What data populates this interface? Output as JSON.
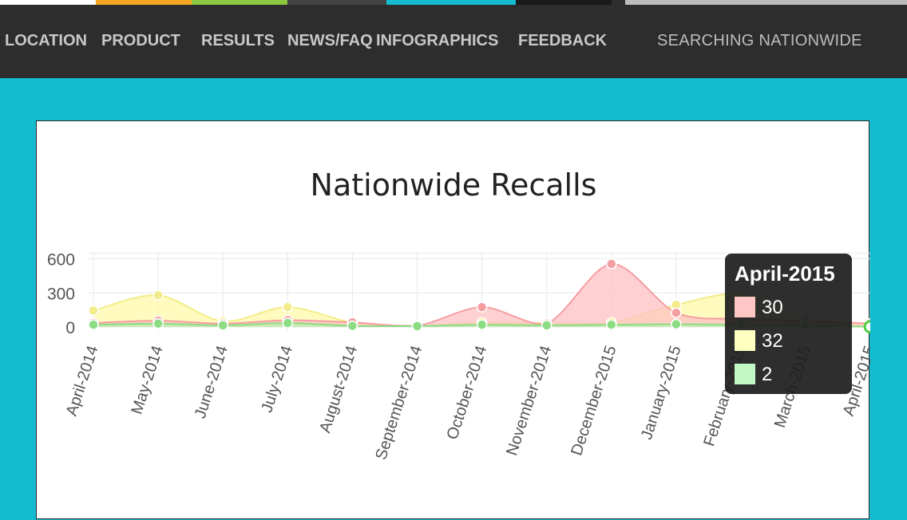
{
  "nav": {
    "strip_colors": [
      "#ffffff",
      "#f5a623",
      "#8dc63f",
      "#444444",
      "#14bccf",
      "#1a1a1a",
      "#2d2d2d",
      "#bbbbbb"
    ],
    "items": [
      "LOCATION",
      "PRODUCT",
      "RESULTS",
      "NEWS/FAQ",
      "INFOGRAPHICS",
      "FEEDBACK"
    ],
    "searching": "SEARCHING NATIONWIDE"
  },
  "tooltip": {
    "title": "April-2015",
    "rows": [
      {
        "value": "30",
        "color": "#ffc6c6"
      },
      {
        "value": "32",
        "color": "#ffffc0"
      },
      {
        "value": "2",
        "color": "#c2f7c6"
      }
    ]
  },
  "chart_data": {
    "type": "area",
    "title": "Nationwide Recalls",
    "categories": [
      "April-2014",
      "May-2014",
      "June-2014",
      "July-2014",
      "August-2014",
      "September-2014",
      "October-2014",
      "November-2014",
      "December-2015",
      "January-2015",
      "February-2015",
      "March-2015",
      "April-2015"
    ],
    "y_ticks": [
      "0",
      "300",
      "600"
    ],
    "ylim": [
      0,
      650
    ],
    "grid": true,
    "series": [
      {
        "values": [
          145,
          280,
          50,
          175,
          40,
          10,
          40,
          35,
          40,
          195,
          290,
          60,
          32
        ],
        "color": "#fff9a8",
        "stroke": "#f3ec8a"
      },
      {
        "values": [
          35,
          55,
          30,
          60,
          40,
          12,
          175,
          30,
          555,
          125,
          70,
          55,
          30
        ],
        "color": "#ffc0c3",
        "stroke": "#f49ea2"
      },
      {
        "values": [
          20,
          30,
          15,
          35,
          10,
          8,
          20,
          15,
          20,
          25,
          20,
          15,
          2
        ],
        "color": "#b8f2b0",
        "stroke": "#8cdc84"
      }
    ]
  }
}
